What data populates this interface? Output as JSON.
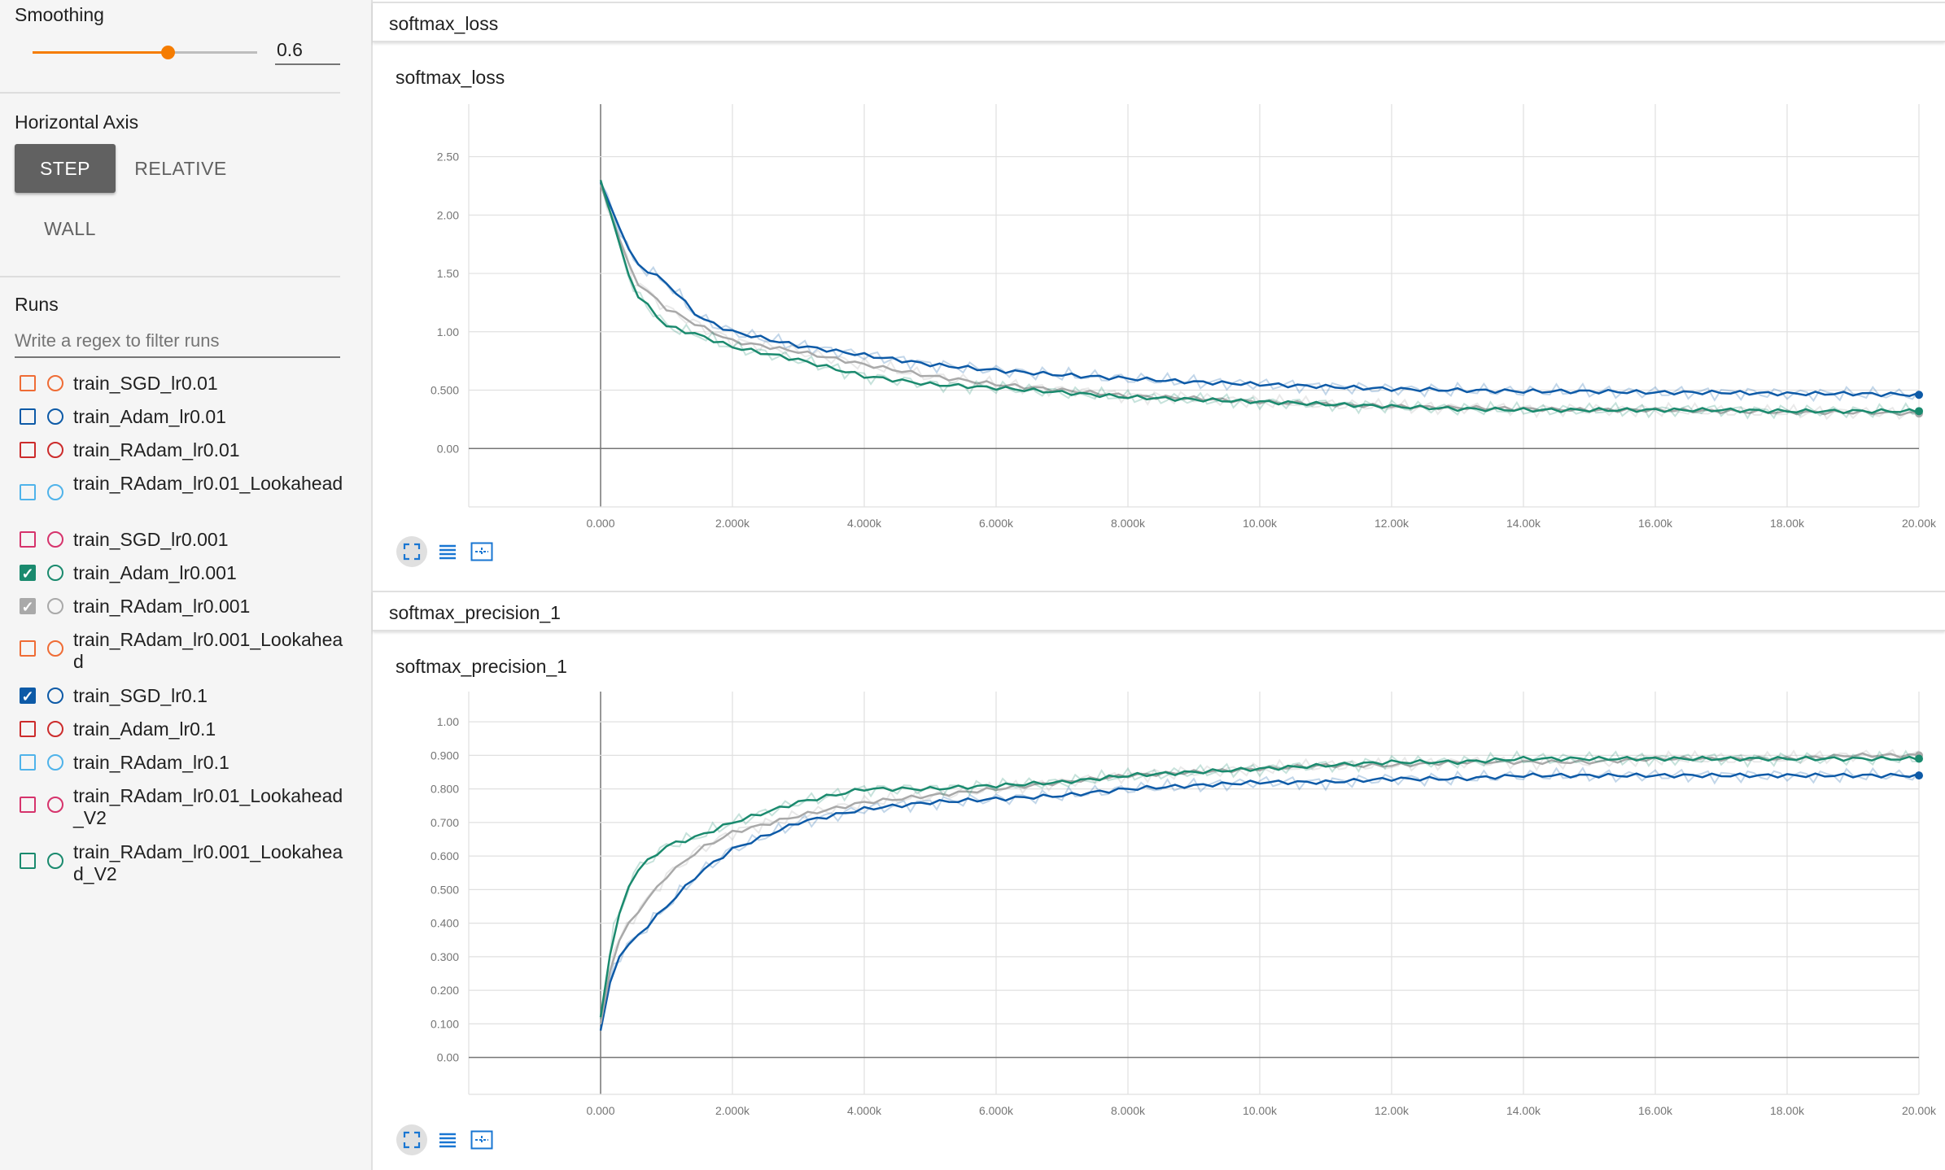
{
  "sidebar": {
    "smoothing": {
      "label": "Smoothing",
      "value": "0.6",
      "slider_fraction": 0.6
    },
    "horizontal_axis": {
      "label": "Horizontal Axis",
      "step": "STEP",
      "relative": "RELATIVE",
      "wall": "WALL",
      "selected": "STEP"
    },
    "runs": {
      "label": "Runs",
      "filter_placeholder": "Write a regex to filter runs",
      "items": [
        {
          "name": "train_SGD_lr0.01",
          "color": "#ef6c35",
          "checked": false
        },
        {
          "name": "train_Adam_lr0.01",
          "color": "#0d5aa7",
          "checked": false
        },
        {
          "name": "train_RAdam_lr0.01",
          "color": "#cc2b2b",
          "checked": false
        },
        {
          "name": "train_RAdam_lr0.01_Lookahead",
          "color": "#4fb3ea",
          "checked": false
        },
        {
          "name": "train_SGD_lr0.001",
          "color": "#d6336c",
          "checked": false
        },
        {
          "name": "train_Adam_lr0.001",
          "color": "#1a8a6e",
          "checked": true
        },
        {
          "name": "train_RAdam_lr0.001",
          "color": "#a9a9a9",
          "checked": true
        },
        {
          "name": "train_RAdam_lr0.001_Lookahead",
          "color": "#ef6c35",
          "checked": false
        },
        {
          "name": "train_SGD_lr0.1",
          "color": "#0d5aa7",
          "checked": true
        },
        {
          "name": "train_Adam_lr0.1",
          "color": "#cc2b2b",
          "checked": false
        },
        {
          "name": "train_RAdam_lr0.1",
          "color": "#4fb3ea",
          "checked": false
        },
        {
          "name": "train_RAdam_lr0.01_Lookahead_V2",
          "color": "#d6336c",
          "checked": false
        },
        {
          "name": "train_RAdam_lr0.001_Lookahead_V2",
          "color": "#1a8a6e",
          "checked": false
        }
      ]
    }
  },
  "panels": [
    {
      "header": "softmax_loss"
    },
    {
      "header": "softmax_precision_1"
    }
  ],
  "chart_data": [
    {
      "type": "line",
      "title": "softmax_loss",
      "xlim": [
        -2000,
        20000
      ],
      "ylim": [
        -0.5,
        2.95
      ],
      "xticks": [
        0,
        2000,
        4000,
        6000,
        8000,
        10000,
        12000,
        14000,
        16000,
        18000,
        20000
      ],
      "xtick_labels": [
        "0.000",
        "2.000k",
        "4.000k",
        "6.000k",
        "8.000k",
        "10.00k",
        "12.00k",
        "14.00k",
        "16.00k",
        "18.00k",
        "20.00k"
      ],
      "yticks": [
        0,
        0.5,
        1.0,
        1.5,
        2.0,
        2.5
      ],
      "ytick_labels": [
        "0.00",
        "0.500",
        "1.00",
        "1.50",
        "2.00",
        "2.50"
      ],
      "grid": true,
      "series": [
        {
          "color": "#0d5aa7",
          "x": [
            0,
            500,
            1000,
            1500,
            2000,
            3000,
            4000,
            5000,
            6000,
            7000,
            8000,
            9000,
            10000,
            11000,
            12000,
            13000,
            14000,
            15000,
            16000,
            17000,
            18000,
            19000,
            20000
          ],
          "y": [
            2.28,
            1.6,
            1.42,
            1.12,
            1.0,
            0.88,
            0.8,
            0.72,
            0.67,
            0.63,
            0.6,
            0.57,
            0.55,
            0.53,
            0.51,
            0.5,
            0.49,
            0.49,
            0.48,
            0.48,
            0.47,
            0.47,
            0.46
          ]
        },
        {
          "color": "#a9a9a9",
          "x": [
            0,
            500,
            1000,
            1500,
            2000,
            3000,
            4000,
            5000,
            6000,
            7000,
            8000,
            9000,
            10000,
            11000,
            12000,
            13000,
            14000,
            15000,
            16000,
            17000,
            18000,
            19000,
            20000
          ],
          "y": [
            2.26,
            1.45,
            1.2,
            1.05,
            0.92,
            0.83,
            0.72,
            0.62,
            0.55,
            0.5,
            0.45,
            0.43,
            0.4,
            0.38,
            0.36,
            0.35,
            0.34,
            0.33,
            0.33,
            0.32,
            0.31,
            0.31,
            0.3
          ]
        },
        {
          "color": "#1a8a6e",
          "x": [
            0,
            500,
            1000,
            1500,
            2000,
            3000,
            4000,
            5000,
            6000,
            7000,
            8000,
            9000,
            10000,
            11000,
            12000,
            13000,
            14000,
            15000,
            16000,
            17000,
            18000,
            19000,
            20000
          ],
          "y": [
            2.3,
            1.35,
            1.05,
            0.97,
            0.87,
            0.76,
            0.62,
            0.55,
            0.52,
            0.48,
            0.44,
            0.42,
            0.4,
            0.38,
            0.36,
            0.34,
            0.33,
            0.33,
            0.33,
            0.33,
            0.32,
            0.32,
            0.32
          ]
        }
      ]
    },
    {
      "type": "line",
      "title": "softmax_precision_1",
      "xlim": [
        -2000,
        20000
      ],
      "ylim": [
        -0.11,
        1.09
      ],
      "xticks": [
        0,
        2000,
        4000,
        6000,
        8000,
        10000,
        12000,
        14000,
        16000,
        18000,
        20000
      ],
      "xtick_labels": [
        "0.000",
        "2.000k",
        "4.000k",
        "6.000k",
        "8.000k",
        "10.00k",
        "12.00k",
        "14.00k",
        "16.00k",
        "18.00k",
        "20.00k"
      ],
      "yticks": [
        0,
        0.1,
        0.2,
        0.3,
        0.4,
        0.5,
        0.6,
        0.7,
        0.8,
        0.9,
        1.0
      ],
      "ytick_labels": [
        "0.00",
        "0.100",
        "0.200",
        "0.300",
        "0.400",
        "0.500",
        "0.600",
        "0.700",
        "0.800",
        "0.900",
        "1.00"
      ],
      "grid": true,
      "series": [
        {
          "color": "#0d5aa7",
          "x": [
            0,
            200,
            500,
            1000,
            1500,
            2000,
            3000,
            4000,
            5000,
            6000,
            7000,
            8000,
            9000,
            10000,
            11000,
            12000,
            13000,
            14000,
            15000,
            16000,
            17000,
            18000,
            19000,
            20000
          ],
          "y": [
            0.08,
            0.28,
            0.35,
            0.45,
            0.55,
            0.62,
            0.7,
            0.74,
            0.76,
            0.77,
            0.78,
            0.8,
            0.81,
            0.82,
            0.82,
            0.83,
            0.83,
            0.84,
            0.84,
            0.84,
            0.84,
            0.84,
            0.84,
            0.84
          ]
        },
        {
          "color": "#a9a9a9",
          "x": [
            0,
            200,
            500,
            1000,
            1500,
            2000,
            3000,
            4000,
            5000,
            6000,
            7000,
            8000,
            9000,
            10000,
            11000,
            12000,
            13000,
            14000,
            15000,
            16000,
            17000,
            18000,
            19000,
            20000
          ],
          "y": [
            0.1,
            0.32,
            0.42,
            0.54,
            0.62,
            0.67,
            0.72,
            0.76,
            0.78,
            0.8,
            0.82,
            0.84,
            0.85,
            0.86,
            0.87,
            0.87,
            0.88,
            0.88,
            0.88,
            0.89,
            0.89,
            0.89,
            0.9,
            0.9
          ]
        },
        {
          "color": "#1a8a6e",
          "x": [
            0,
            200,
            500,
            1000,
            1500,
            2000,
            3000,
            4000,
            5000,
            6000,
            7000,
            8000,
            9000,
            10000,
            11000,
            12000,
            13000,
            14000,
            15000,
            16000,
            17000,
            18000,
            19000,
            20000
          ],
          "y": [
            0.12,
            0.38,
            0.55,
            0.63,
            0.66,
            0.7,
            0.76,
            0.8,
            0.8,
            0.81,
            0.82,
            0.84,
            0.85,
            0.86,
            0.87,
            0.88,
            0.88,
            0.89,
            0.89,
            0.89,
            0.89,
            0.89,
            0.89,
            0.89
          ]
        }
      ]
    }
  ]
}
